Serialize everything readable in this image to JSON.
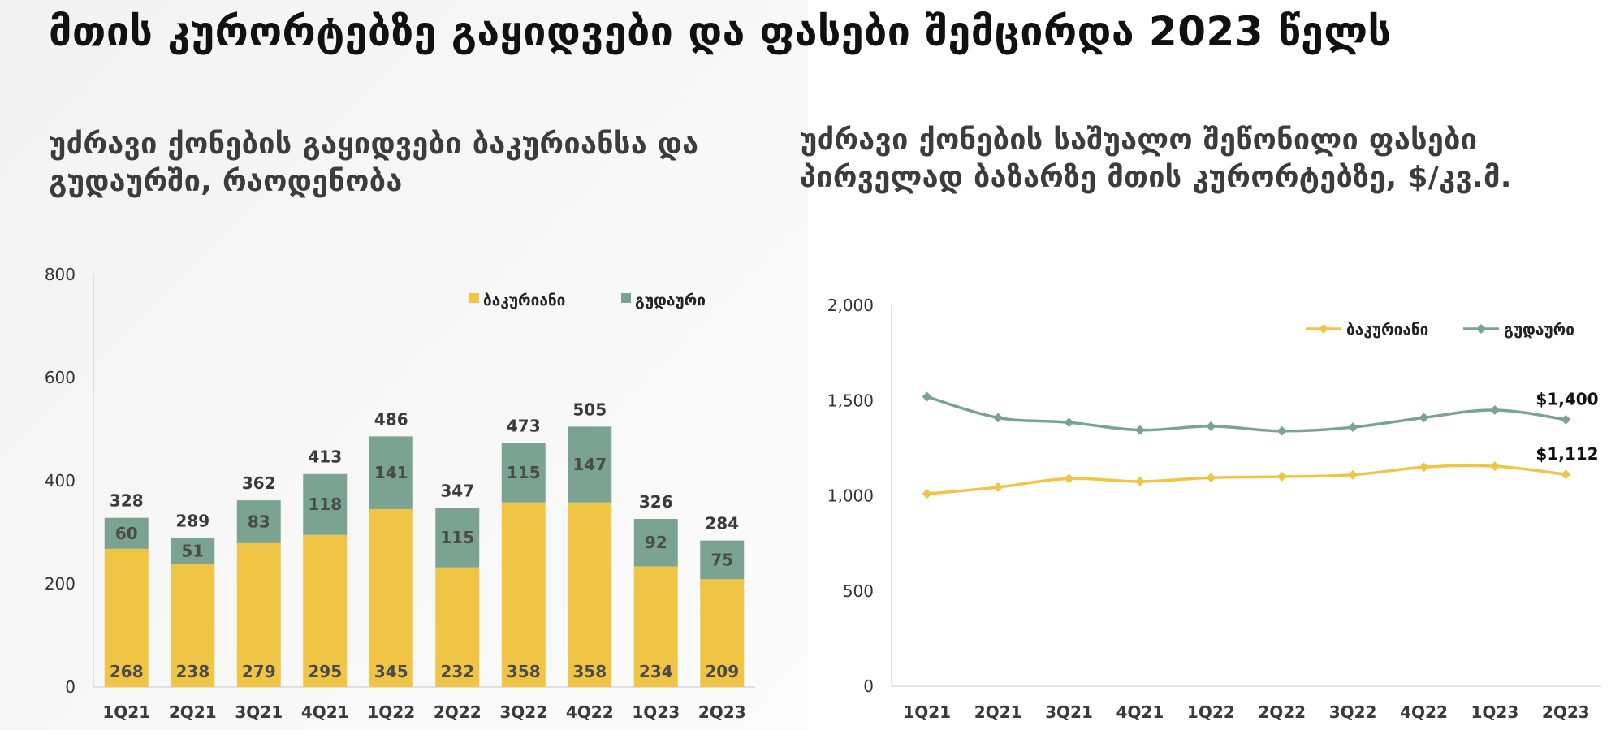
{
  "page": {
    "title": "მთის კურორტებზე გაყიდვები და ფასები შემცირდა 2023 წელს"
  },
  "colors": {
    "bakuriani": "#F0C445",
    "gudauri": "#7BA391"
  },
  "chart_data": [
    {
      "type": "bar",
      "stacked": true,
      "title": "უძრავი ქონების გაყიდვები ბაკურიანსა და გუდაურში, რაოდენობა",
      "categories": [
        "1Q21",
        "2Q21",
        "3Q21",
        "4Q21",
        "1Q22",
        "2Q22",
        "3Q22",
        "4Q22",
        "1Q23",
        "2Q23"
      ],
      "series": [
        {
          "name": "ბაკურიანი",
          "values": [
            268,
            238,
            279,
            295,
            345,
            232,
            358,
            358,
            234,
            209
          ]
        },
        {
          "name": "გუდაური",
          "values": [
            60,
            51,
            83,
            118,
            141,
            115,
            115,
            147,
            92,
            75
          ]
        }
      ],
      "totals": [
        328,
        289,
        362,
        413,
        486,
        347,
        473,
        505,
        326,
        284
      ],
      "ylim": [
        0,
        800
      ],
      "yticks": [
        "0",
        "200",
        "400",
        "600",
        "800"
      ],
      "legend": "top-right",
      "grid": false
    },
    {
      "type": "line",
      "title": "უძრავი ქონების საშუალო შეწონილი ფასები პირველად ბაზარზე მთის კურორტებზე, $/კვ.მ.",
      "categories": [
        "1Q21",
        "2Q21",
        "3Q21",
        "4Q21",
        "1Q22",
        "2Q22",
        "3Q22",
        "4Q22",
        "1Q23",
        "2Q23"
      ],
      "series": [
        {
          "name": "ბაკურიანი",
          "values": [
            1010,
            1045,
            1090,
            1075,
            1095,
            1100,
            1110,
            1150,
            1155,
            1112
          ],
          "end_label": "$1,112"
        },
        {
          "name": "გუდაური",
          "values": [
            1520,
            1410,
            1385,
            1345,
            1365,
            1340,
            1360,
            1410,
            1450,
            1400
          ],
          "end_label": "$1,400"
        }
      ],
      "ylim": [
        0,
        2000
      ],
      "yticks": [
        "0",
        "500",
        "1,000",
        "1,500",
        "2,000"
      ],
      "legend": "top-right",
      "grid": false
    }
  ]
}
